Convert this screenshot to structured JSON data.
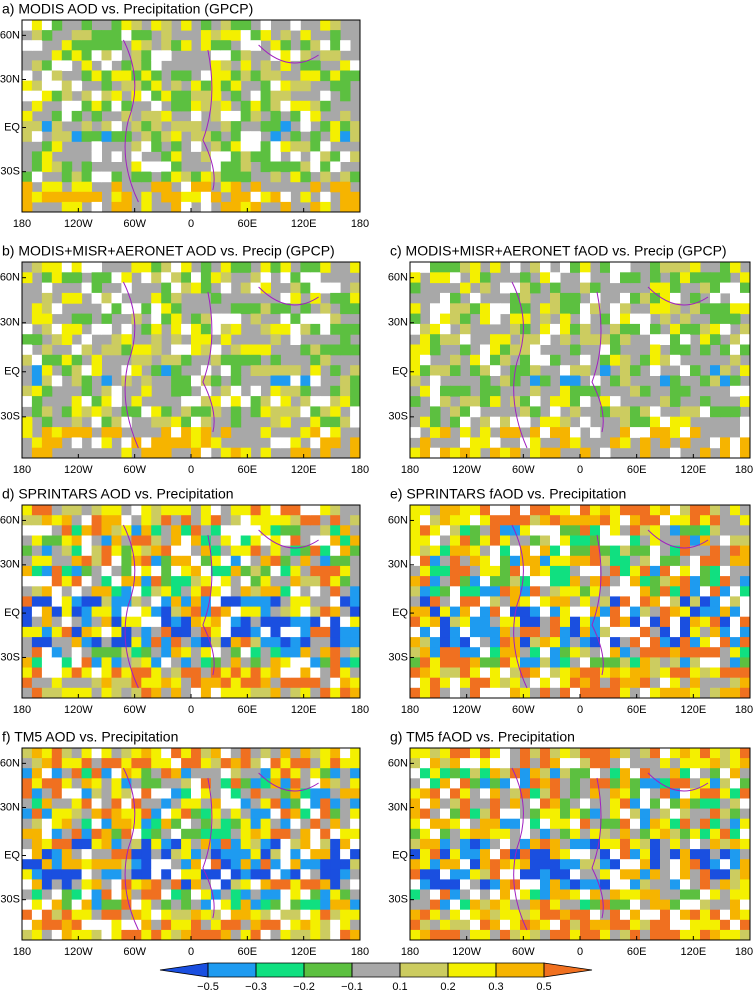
{
  "panels": [
    {
      "title": "a) MODIS AOD vs. Precipitation (GPCP)",
      "xticks": [
        "180",
        "120W",
        "60W",
        "0",
        "60E",
        "120E",
        "180"
      ],
      "yticks": [
        "60N",
        "30N",
        "EQ",
        "30S"
      ]
    },
    {
      "title": "b) MODIS+MISR+AERONET AOD vs. Precip (GPCP)",
      "xticks": [
        "180",
        "120W",
        "60W",
        "0",
        "60E",
        "120E",
        "180"
      ],
      "yticks": [
        "60N",
        "30N",
        "EQ",
        "30S"
      ]
    },
    {
      "title": "c) MODIS+MISR+AERONET fAOD vs. Precip (GPCP)",
      "xticks": [
        "180",
        "120W",
        "60W",
        "0",
        "60E",
        "120E",
        "180"
      ],
      "yticks": [
        "60N",
        "30N",
        "EQ",
        "30S"
      ]
    },
    {
      "title": "d) SPRINTARS AOD vs. Precipitation",
      "xticks": [
        "180",
        "120W",
        "60W",
        "0",
        "60E",
        "120E",
        "180"
      ],
      "yticks": [
        "60N",
        "30N",
        "EQ",
        "30S"
      ]
    },
    {
      "title": "e) SPRINTARS fAOD vs. Precipitation",
      "xticks": [
        "180",
        "120W",
        "60W",
        "0",
        "60E",
        "120E",
        "180"
      ],
      "yticks": [
        "60N",
        "30N",
        "EQ",
        "30S"
      ]
    },
    {
      "title": "f) TM5 AOD vs. Precipitation",
      "xticks": [
        "180",
        "120W",
        "60W",
        "0",
        "60E",
        "120E",
        "180"
      ],
      "yticks": [
        "60N",
        "30N",
        "EQ",
        "30S"
      ]
    },
    {
      "title": "g) TM5 fAOD vs. Precipitation",
      "xticks": [
        "180",
        "120W",
        "60W",
        "0",
        "60E",
        "120E",
        "180"
      ],
      "yticks": [
        "60N",
        "30N",
        "EQ",
        "30S"
      ]
    }
  ],
  "colorbar": {
    "colors": [
      "#1a4fe0",
      "#1e9bf0",
      "#10e080",
      "#5cc040",
      "#a8a8a8",
      "#cccc60",
      "#f4f000",
      "#f6b400",
      "#f07020"
    ],
    "ticks": [
      {
        "value": -0.5,
        "label": "−0.5"
      },
      {
        "value": -0.3,
        "label": "−0.3"
      },
      {
        "value": -0.2,
        "label": "−0.2"
      },
      {
        "value": -0.1,
        "label": "−0.1"
      },
      {
        "value": 0.1,
        "label": "0.1"
      },
      {
        "value": 0.2,
        "label": "0.2"
      },
      {
        "value": 0.3,
        "label": "0.3"
      },
      {
        "value": 0.5,
        "label": "0.5"
      }
    ]
  }
}
